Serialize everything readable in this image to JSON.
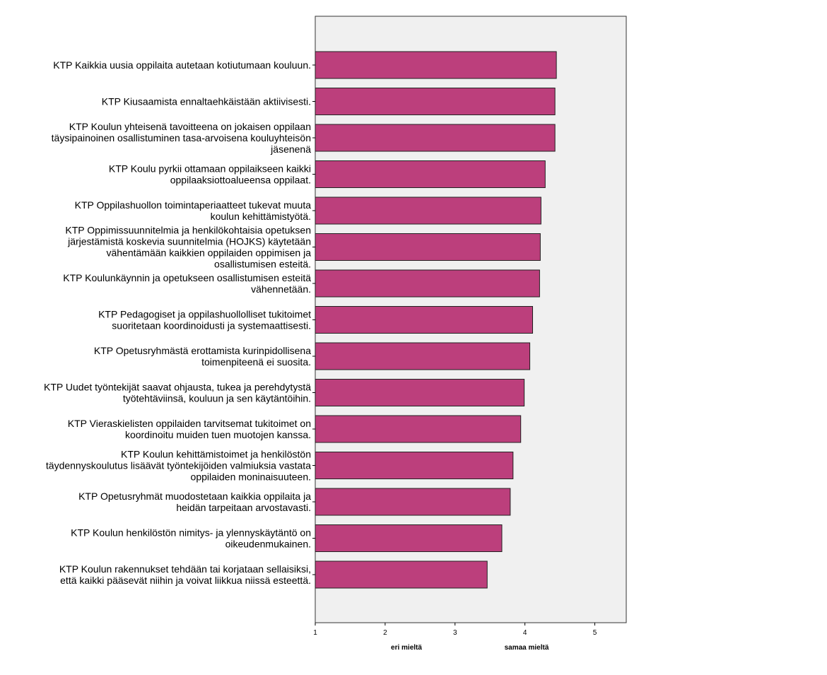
{
  "chart_data": {
    "type": "bar",
    "orientation": "horizontal",
    "categories": [
      [
        "KTP Kaikkia uusia oppilaita autetaan kotiutumaan kouluun."
      ],
      [
        "KTP Kiusaamista ennaltaehkäistään aktiivisesti."
      ],
      [
        "KTP Koulun yhteisenä tavoitteena on jokaisen oppilaan",
        "täysipainoinen osallistuminen tasa-arvoisena kouluyhteisön",
        "jäsenenä"
      ],
      [
        "KTP Koulu pyrkii ottamaan oppilaikseen kaikki",
        "oppilaaksiottoalueensa oppilaat."
      ],
      [
        "KTP Oppilashuollon toimintaperiaatteet tukevat muuta",
        "koulun kehittämistyötä."
      ],
      [
        "KTP Oppimissuunnitelmia ja henkilökohtaisia opetuksen",
        "järjestämistä koskevia suunnitelmia (HOJKS) käytetään",
        "vähentämään kaikkien oppilaiden oppimisen ja",
        "osallistumisen esteitä."
      ],
      [
        "KTP Koulunkäynnin ja opetukseen osallistumisen esteitä",
        "vähennetään."
      ],
      [
        "KTP Pedagogiset ja oppilashuollolliset tukitoimet",
        "suoritetaan koordinoidusti ja systemaattisesti."
      ],
      [
        "KTP Opetusryhmästä erottamista kurinpidollisena",
        "toimenpiteenä ei suosita."
      ],
      [
        "KTP Uudet työntekijät saavat ohjausta, tukea ja perehdytystä",
        "työtehtäviinsä, kouluun ja sen käytäntöihin."
      ],
      [
        "KTP Vieraskielisten oppilaiden tarvitsemat tukitoimet on",
        "koordinoitu muiden tuen muotojen kanssa."
      ],
      [
        "KTP Koulun kehittämistoimet ja henkilöstön",
        "täydennyskoulutus lisäävät työntekijöiden valmiuksia vastata",
        "oppilaiden moninaisuuteen."
      ],
      [
        "KTP Opetusryhmät muodostetaan kaikkia oppilaita ja",
        "heidän tarpeitaan arvostavasti."
      ],
      [
        "KTP Koulun henkilöstön nimitys- ja ylennyskäytäntö on",
        "oikeudenmukainen."
      ],
      [
        "KTP Koulun rakennukset tehdään tai korjataan sellaisiksi,",
        "että kaikki pääsevät niihin ja voivat liikkua niissä esteettä."
      ]
    ],
    "values": [
      4.45,
      4.43,
      4.43,
      4.29,
      4.23,
      4.22,
      4.21,
      4.11,
      4.07,
      3.99,
      3.94,
      3.83,
      3.79,
      3.67,
      3.46
    ],
    "xlim": [
      1,
      5.45
    ],
    "xticks": [
      "1",
      "2",
      "3",
      "4",
      "5"
    ],
    "annotations": [
      "eri mieltä",
      "samaa mieltä"
    ],
    "title": "",
    "xlabel": "",
    "ylabel": "",
    "grid": false,
    "colors": {
      "bar": "#bc3f7c",
      "bar_border": "#222222",
      "plot_bg": "#f0f0f0",
      "plot_border": "#333333"
    }
  }
}
